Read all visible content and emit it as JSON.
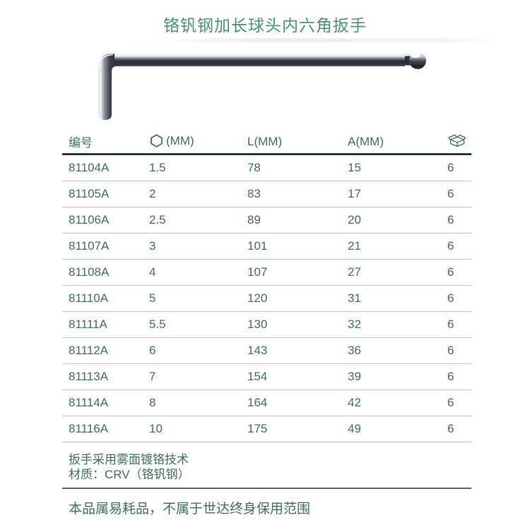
{
  "page": {
    "title": "铬钒钢加长球头内六角扳手"
  },
  "icons": {
    "hex_size": "hexagon-outline-icon",
    "package_qty": "package-box-icon"
  },
  "table": {
    "headers": [
      {
        "label": "编号",
        "icon": null
      },
      {
        "label": "(MM)",
        "icon": "hexagon-outline-icon"
      },
      {
        "label": "L(MM)",
        "icon": null
      },
      {
        "label": "A(MM)",
        "icon": null
      },
      {
        "label": "",
        "icon": "package-box-icon"
      }
    ],
    "rows": [
      [
        "81104A",
        "1.5",
        "78",
        "15",
        "6"
      ],
      [
        "81105A",
        "2",
        "83",
        "17",
        "6"
      ],
      [
        "81106A",
        "2.5",
        "89",
        "20",
        "6"
      ],
      [
        "81107A",
        "3",
        "101",
        "21",
        "6"
      ],
      [
        "81108A",
        "4",
        "107",
        "27",
        "6"
      ],
      [
        "81110A",
        "5",
        "120",
        "31",
        "6"
      ],
      [
        "81111A",
        "5.5",
        "130",
        "32",
        "6"
      ],
      [
        "81112A",
        "6",
        "143",
        "36",
        "6"
      ],
      [
        "81113A",
        "7",
        "154",
        "39",
        "6"
      ],
      [
        "81114A",
        "8",
        "164",
        "42",
        "6"
      ],
      [
        "81116A",
        "10",
        "175",
        "49",
        "6"
      ]
    ]
  },
  "notes": {
    "line1": "扳手采用雾面镀铬技术",
    "line2": "材质：CRV（铬钒钢）",
    "warranty": "本品属易耗品，不属于世达终身保用范围"
  },
  "colors": {
    "title_green": "#4a9470",
    "text_green": "#3e6f60",
    "header_rule": "#233b33",
    "row_rule": "#bcc7c2",
    "bottom_rule": "#55665e"
  }
}
